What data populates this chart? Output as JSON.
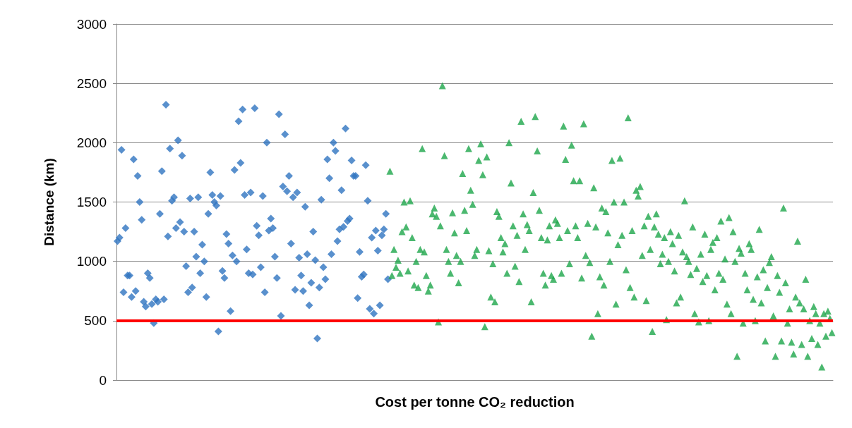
{
  "chart_data": {
    "type": "scatter",
    "xlabel": "Cost per tonne CO₂ reduction",
    "ylabel": "Distance (km)",
    "ylim": [
      0,
      3000
    ],
    "yticks": [
      0,
      500,
      1000,
      1500,
      2000,
      2500,
      3000
    ],
    "grid": "y",
    "tick_labels": "y",
    "ref_lines": [
      {
        "axis": "y",
        "value": 500,
        "color": "#ff0000"
      }
    ],
    "categories": [
      null,
      null,
      null,
      null,
      null,
      null,
      null,
      null,
      null,
      null,
      null,
      null,
      null,
      null,
      null,
      null,
      null,
      null,
      null,
      null,
      null,
      null,
      null,
      null,
      null,
      null,
      null,
      null,
      null,
      null,
      null,
      null,
      null,
      null,
      null,
      null,
      null,
      null,
      null,
      null,
      null,
      null,
      null,
      null,
      null,
      null,
      null,
      null,
      null,
      null,
      null,
      null,
      null,
      null,
      null,
      null,
      null,
      null,
      null,
      null,
      null,
      null,
      null,
      null,
      null,
      null,
      null,
      null,
      null,
      null,
      null,
      null,
      null,
      null,
      null,
      null,
      null,
      null,
      null,
      null,
      null,
      null,
      null,
      null,
      null,
      null,
      null,
      null,
      null,
      null,
      null,
      null,
      null,
      null,
      null,
      null,
      null,
      null,
      null,
      null,
      null,
      null,
      null,
      null,
      null,
      null,
      null,
      null,
      null,
      null,
      null,
      null,
      null,
      null,
      null,
      null,
      null,
      null,
      null,
      null,
      null,
      null,
      null,
      null,
      null,
      null,
      null,
      null,
      null,
      null,
      null,
      null,
      null,
      null,
      null,
      null,
      null,
      null,
      null,
      null,
      null,
      null,
      null,
      null,
      null,
      null,
      null,
      null,
      null,
      null,
      null,
      null,
      null,
      null,
      null,
      null,
      null,
      null,
      null,
      null,
      null,
      null,
      null,
      null,
      null,
      null,
      null,
      null,
      null,
      null,
      null,
      null,
      null,
      null,
      null,
      null,
      null,
      null,
      null,
      null,
      null,
      null,
      null,
      null,
      null,
      null,
      null,
      null,
      null,
      null,
      null,
      null,
      null,
      null,
      null,
      null,
      null,
      null,
      null,
      null,
      null,
      null,
      null,
      null,
      null,
      null,
      null,
      null,
      null,
      null,
      null,
      null,
      null,
      null,
      null,
      null,
      null,
      null,
      null,
      null,
      null,
      null,
      null,
      null,
      null,
      null,
      null,
      null,
      null,
      null,
      null,
      null,
      null,
      null,
      null,
      null,
      null,
      null,
      null,
      null,
      null,
      null,
      null,
      null,
      null,
      null,
      null,
      null,
      null,
      null,
      null,
      null,
      null,
      null,
      null,
      null,
      null,
      null,
      null,
      null,
      null,
      null,
      null,
      null,
      null,
      null,
      null,
      null,
      null,
      null,
      null,
      null,
      null,
      null,
      null,
      null,
      null,
      null,
      null,
      null,
      null,
      null,
      null,
      null,
      null,
      null,
      null,
      null,
      null,
      null,
      null,
      null,
      null,
      null,
      null,
      null,
      null,
      null,
      null,
      null,
      null,
      null,
      null,
      null,
      null,
      null,
      null,
      null,
      null,
      null,
      null,
      null,
      null,
      null,
      null,
      null,
      null,
      null,
      null,
      null,
      null,
      null,
      null,
      null,
      null,
      null,
      null,
      null,
      null,
      null,
      null,
      null,
      null,
      null,
      null,
      null,
      null,
      null,
      null,
      null,
      null,
      null,
      null,
      null,
      null,
      null,
      null,
      null,
      null,
      null,
      null,
      null,
      null,
      null,
      null
    ],
    "series": [
      {
        "color": "#2f74c0",
        "marker": "diamond",
        "values": [
          1170,
          1200,
          1940,
          740,
          1280,
          880,
          880,
          700,
          1860,
          750,
          1720,
          1500,
          1350,
          660,
          620,
          900,
          860,
          640,
          480,
          680,
          660,
          1400,
          1760,
          680,
          2320,
          1210,
          1950,
          1510,
          1540,
          1280,
          2020,
          1330,
          1890,
          1250,
          960,
          740,
          1530,
          780,
          1250,
          1040,
          1540,
          900,
          1140,
          1000,
          700,
          1400,
          1750,
          1560,
          1500,
          1470,
          410,
          1550,
          920,
          860,
          1230,
          1150,
          580,
          1050,
          1770,
          1000,
          2180,
          1830,
          2280,
          1560,
          1100,
          900,
          1580,
          890,
          2290,
          1300,
          1220,
          950,
          1550,
          740,
          2000,
          1260,
          1360,
          1280,
          1040,
          860,
          2240,
          540,
          1630,
          2070,
          1590,
          1720,
          1150,
          1540,
          760,
          1580,
          1030,
          880,
          750,
          1460,
          1060,
          630,
          820,
          1250,
          1010,
          350,
          780,
          1520,
          950,
          850,
          1860,
          1700,
          1060,
          2000,
          1930,
          1170,
          1270,
          1600,
          1290,
          2120,
          1340,
          1360,
          1850,
          1720,
          1720,
          690,
          1080,
          870,
          890,
          1810,
          1510,
          600,
          1200,
          560,
          1260,
          1090,
          630,
          1220,
          1270,
          1400,
          850,
          null,
          null,
          null,
          null,
          null,
          null,
          null,
          null,
          null,
          null,
          null,
          null,
          null,
          null,
          null,
          null,
          null,
          null,
          null,
          null,
          null,
          null,
          null,
          null,
          null,
          null,
          null,
          null,
          null,
          null,
          null,
          null,
          null,
          null,
          null,
          null,
          null,
          null,
          null,
          null,
          null,
          null,
          null,
          null,
          null,
          null,
          null,
          null,
          null,
          null,
          null,
          null,
          null,
          null,
          null,
          null,
          null,
          null,
          null,
          null,
          null,
          null,
          null,
          null,
          null,
          null,
          null,
          null,
          null,
          null,
          null,
          null,
          null,
          null,
          null,
          null,
          null,
          null,
          null,
          null,
          null,
          null,
          null,
          null,
          null,
          null,
          null,
          null,
          null,
          null,
          null,
          null,
          null,
          null,
          null,
          null,
          null,
          null,
          null,
          null,
          null,
          null,
          null,
          null,
          null,
          null,
          null,
          null,
          null,
          null,
          null,
          null,
          null,
          null,
          null,
          null,
          null,
          null,
          null,
          null,
          null,
          null,
          null,
          null,
          null,
          null,
          null,
          null,
          null,
          null,
          null,
          null,
          null,
          null,
          null,
          null,
          null,
          null,
          null,
          null,
          null,
          null,
          null,
          null,
          null,
          null,
          null,
          null,
          null,
          null,
          null,
          null,
          null,
          null,
          null,
          null,
          null,
          null,
          null,
          null,
          null,
          null,
          null,
          null,
          null,
          null,
          null,
          null,
          null,
          null,
          null,
          null,
          null,
          null,
          null,
          null,
          null,
          null,
          null,
          null,
          null,
          null,
          null,
          null,
          null,
          null,
          null,
          null,
          null,
          null,
          null,
          null,
          null,
          null,
          null,
          null,
          null,
          null,
          null,
          null,
          null,
          null,
          null,
          null,
          null,
          null,
          null,
          null,
          null,
          null,
          null,
          null,
          null,
          null,
          null,
          null,
          null,
          null,
          null,
          null
        ]
      },
      {
        "color": "#1ea64b",
        "marker": "triangle",
        "values": [
          null,
          null,
          null,
          null,
          null,
          null,
          null,
          null,
          null,
          null,
          null,
          null,
          null,
          null,
          null,
          null,
          null,
          null,
          null,
          null,
          null,
          null,
          null,
          null,
          null,
          null,
          null,
          null,
          null,
          null,
          null,
          null,
          null,
          null,
          null,
          null,
          null,
          null,
          null,
          null,
          null,
          null,
          null,
          null,
          null,
          null,
          null,
          null,
          null,
          null,
          null,
          null,
          null,
          null,
          null,
          null,
          null,
          null,
          null,
          null,
          null,
          null,
          null,
          null,
          null,
          null,
          null,
          null,
          null,
          null,
          null,
          null,
          null,
          null,
          null,
          null,
          null,
          null,
          null,
          null,
          null,
          null,
          null,
          null,
          null,
          null,
          null,
          null,
          null,
          null,
          null,
          null,
          null,
          null,
          null,
          null,
          null,
          null,
          null,
          null,
          null,
          null,
          null,
          null,
          null,
          null,
          null,
          null,
          null,
          null,
          null,
          null,
          null,
          null,
          null,
          null,
          null,
          null,
          null,
          null,
          null,
          null,
          null,
          null,
          null,
          null,
          null,
          null,
          null,
          null,
          null,
          null,
          null,
          null,
          null,
          1760,
          880,
          1100,
          950,
          1010,
          900,
          1250,
          1500,
          1290,
          920,
          1510,
          1200,
          800,
          1000,
          780,
          1100,
          1950,
          1080,
          880,
          750,
          800,
          1400,
          1450,
          1380,
          490,
          1300,
          2480,
          1890,
          1100,
          1000,
          900,
          1410,
          1240,
          1050,
          820,
          1000,
          1740,
          1430,
          1260,
          1950,
          1600,
          1480,
          1050,
          1100,
          1850,
          1990,
          1730,
          450,
          1880,
          1090,
          700,
          980,
          660,
          1420,
          1380,
          1200,
          1080,
          1150,
          900,
          2000,
          1660,
          1300,
          960,
          1220,
          830,
          2180,
          1400,
          1100,
          1310,
          1260,
          660,
          1580,
          2220,
          1930,
          1430,
          1200,
          900,
          800,
          1180,
          1300,
          880,
          850,
          1350,
          1320,
          1200,
          900,
          2140,
          1860,
          1260,
          980,
          1980,
          1680,
          1300,
          1200,
          1680,
          860,
          2160,
          1050,
          1320,
          990,
          370,
          1620,
          1290,
          560,
          870,
          1450,
          800,
          1420,
          1240,
          1000,
          1850,
          1500,
          640,
          1140,
          1870,
          1220,
          1500,
          930,
          2210,
          780,
          1260,
          700,
          1600,
          1550,
          1630,
          1050,
          1300,
          670,
          1380,
          1100,
          410,
          1290,
          1400,
          1230,
          980,
          1060,
          1200,
          510,
          1000,
          1250,
          1150,
          920,
          650,
          1220,
          700,
          1080,
          1510,
          1040,
          1000,
          890,
          1290,
          560,
          940,
          490,
          1060,
          830,
          1230,
          880,
          500,
          1100,
          1160,
          760,
          1200,
          900,
          1340,
          850,
          1020,
          640,
          1370,
          560,
          1250,
          1000,
          200,
          1110,
          1070,
          480,
          900,
          760,
          1150,
          1100,
          680,
          500,
          870,
          1270,
          650,
          930,
          330,
          780,
          990,
          1040,
          540,
          200,
          880,
          740,
          330,
          1450,
          820,
          480,
          600,
          320,
          220,
          700,
          1170,
          650,
          300,
          600,
          850,
          200,
          500,
          350,
          620,
          560,
          300,
          480,
          110,
          560,
          370,
          580,
          520,
          400
        ]
      }
    ]
  }
}
